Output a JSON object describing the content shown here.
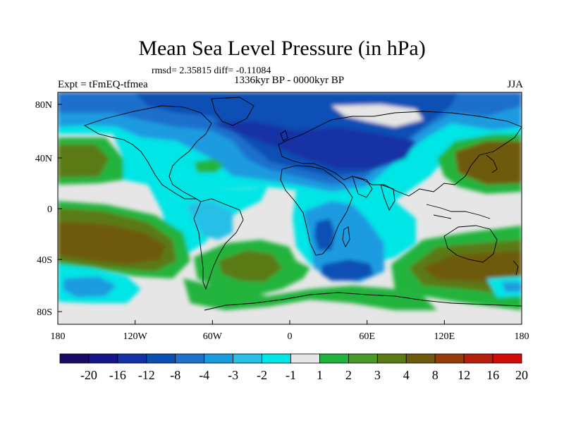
{
  "title": "Mean Sea Level Pressure (in hPa)",
  "stats": "rmsd= 2.35815 diff= -0.11084",
  "period": "1336kyr BP - 0000kyr BP",
  "experiment": "Expt = tFmEQ-tfmea",
  "season": "JJA",
  "axes": {
    "lon_ticks": [
      "180",
      "120W",
      "60W",
      "0",
      "60E",
      "120E",
      "180"
    ],
    "lat_ticks": [
      "80N",
      "40N",
      "0",
      "40S",
      "80S"
    ]
  },
  "colorbar": {
    "labels": [
      "-20",
      "-16",
      "-12",
      "-8",
      "-4",
      "-3",
      "-2",
      "-1",
      "1",
      "2",
      "3",
      "4",
      "8",
      "12",
      "16",
      "20"
    ],
    "colors": [
      "#1a0a66",
      "#14148c",
      "#1432a5",
      "#0b4fb4",
      "#1f70cc",
      "#1a9be0",
      "#26c0e6",
      "#00e5e5",
      "#e6e6e6",
      "#20b43c",
      "#4a9a2a",
      "#5a7a14",
      "#6e5a0c",
      "#963c0a",
      "#b41e0a",
      "#d20a0a"
    ]
  },
  "map_colors": {
    "background": "#e6e6e6",
    "blue_light": "#00e5e5",
    "blue_mid": "#26c0e6",
    "blue": "#1a9be0",
    "blue_dark": "#1f70cc",
    "navy": "#0b4fb4",
    "navy_dark": "#1432a5",
    "green": "#20b43c",
    "green_dark": "#4a9a2a",
    "olive": "#5a7a14",
    "brown": "#6e5a0c"
  }
}
